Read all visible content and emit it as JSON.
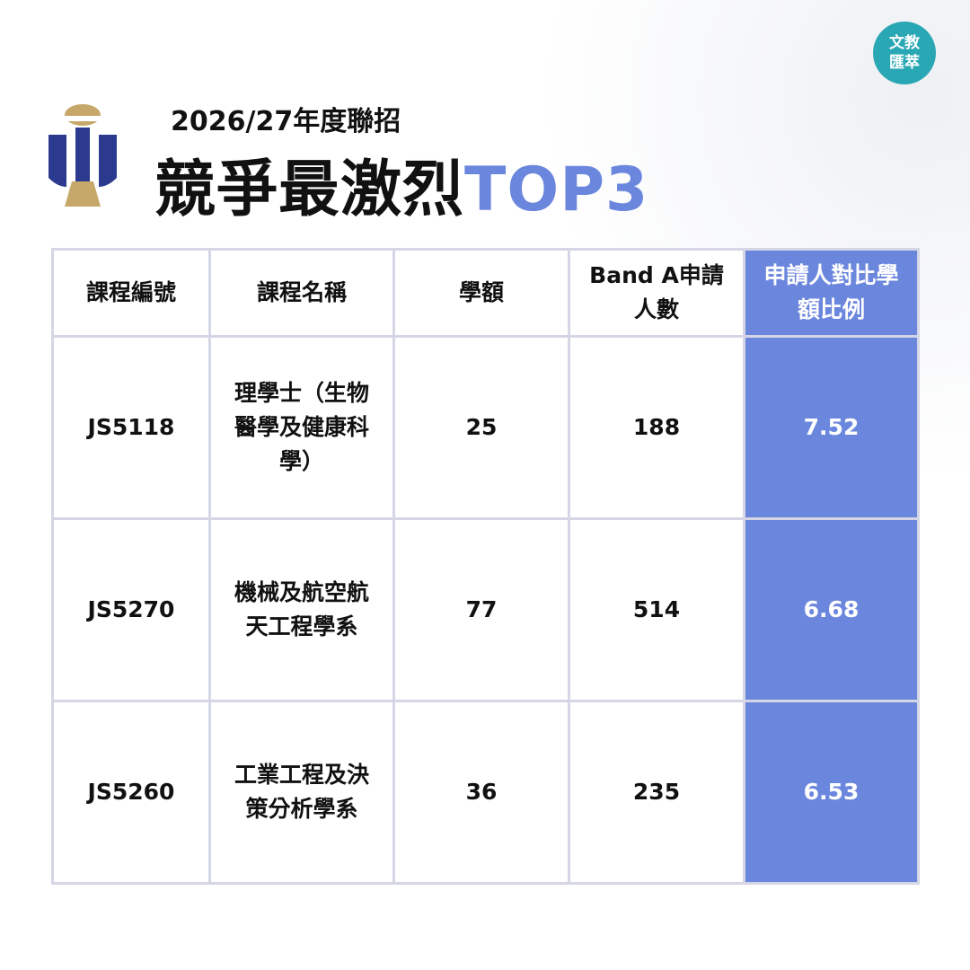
{
  "header": {
    "subtitle": "2026/27年度聯招",
    "title": "競爭最激烈",
    "title_accent": "TOP3"
  },
  "badge": {
    "lines": [
      "文教",
      "匯萃"
    ]
  },
  "table": {
    "columns": [
      "課程編號",
      "課程名稱",
      "學額",
      "Band  A申請人數",
      "申請人對比學額比例"
    ],
    "rows": [
      [
        "JS5118",
        "理學士（生物醫學及健康科學）",
        25,
        188,
        7.52
      ],
      [
        "JS5270",
        "機械及航空航天工程學系",
        77,
        514,
        6.68
      ],
      [
        "JS5260",
        "工業工程及決策分析學系",
        36,
        235,
        6.53
      ]
    ]
  }
}
